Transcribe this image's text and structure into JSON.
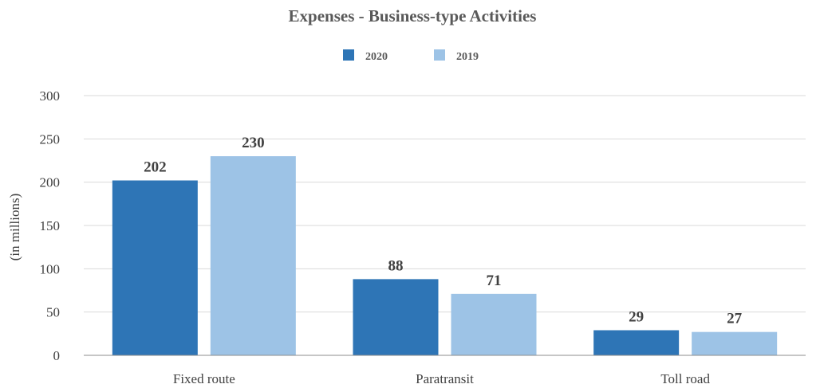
{
  "chart_data": {
    "type": "bar",
    "title": "Expenses - Business-type Activities",
    "ylabel": "(in millions)",
    "xlabel": "",
    "categories": [
      "Fixed route",
      "Paratransit",
      "Toll road"
    ],
    "series": [
      {
        "name": "2020",
        "values": [
          202,
          88,
          29
        ],
        "color": "#2E75B6"
      },
      {
        "name": "2019",
        "values": [
          230,
          71,
          27
        ],
        "color": "#9DC3E6"
      }
    ],
    "ylim": [
      0,
      300
    ],
    "yticks": [
      "0",
      "50",
      "100",
      "150",
      "200",
      "250",
      "300"
    ],
    "grid": true,
    "legend_position": "top-center"
  }
}
